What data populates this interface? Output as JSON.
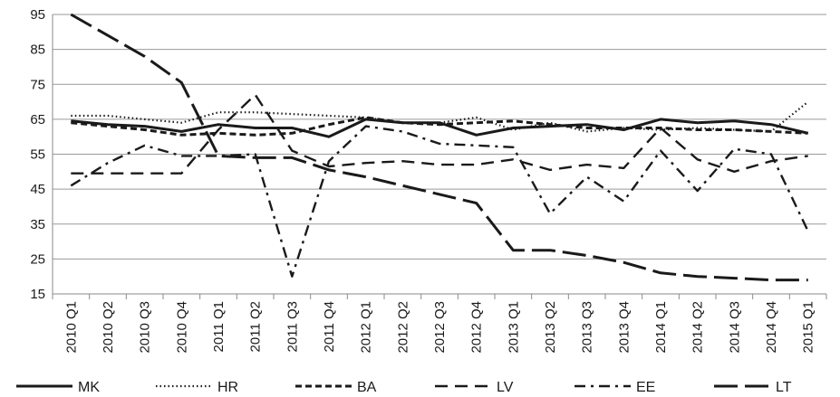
{
  "chart_data": {
    "type": "line",
    "title": "",
    "xlabel": "",
    "ylabel": "",
    "ylim": [
      15,
      95
    ],
    "yticks": [
      15,
      25,
      35,
      45,
      55,
      65,
      75,
      85,
      95
    ],
    "grid": "horizontal",
    "legend_position": "bottom",
    "categories": [
      "2010 Q1",
      "2010 Q2",
      "2010 Q3",
      "2010 Q4",
      "2011 Q1",
      "2011 Q2",
      "2011 Q3",
      "2011 Q4",
      "2012 Q1",
      "2012 Q2",
      "2012 Q3",
      "2012 Q4",
      "2013 Q1",
      "2013 Q2",
      "2013 Q3",
      "2013 Q4",
      "2014 Q1",
      "2014 Q2",
      "2014 Q3",
      "2014 Q4",
      "2015 Q1"
    ],
    "series": [
      {
        "name": "MK",
        "style": "solid",
        "values": [
          64.5,
          63.5,
          63,
          61.5,
          63.5,
          62.5,
          62.5,
          60,
          65,
          64,
          64,
          60.5,
          62.5,
          63,
          63.5,
          62,
          65,
          64,
          64.5,
          63.5,
          61
        ]
      },
      {
        "name": "HR",
        "style": "dotted",
        "values": [
          66,
          66,
          65,
          64,
          67,
          67,
          66.5,
          66,
          65.5,
          64,
          64,
          65.5,
          62,
          64,
          61.5,
          62.5,
          62,
          62.5,
          62,
          61.5,
          70
        ]
      },
      {
        "name": "BA",
        "style": "dashed",
        "values": [
          64,
          63,
          62,
          60.5,
          61,
          60.5,
          61,
          63.5,
          65.5,
          64,
          63.5,
          64,
          64.5,
          63.5,
          62.5,
          62.5,
          62.5,
          62,
          62,
          61.5,
          61
        ]
      },
      {
        "name": "LV",
        "style": "longdash",
        "values": [
          49.5,
          49.5,
          49.5,
          49.5,
          62,
          72,
          56,
          51.5,
          52.5,
          53,
          52,
          52,
          53.5,
          50.5,
          52,
          51,
          62.5,
          53.5,
          50,
          53,
          54.5
        ]
      },
      {
        "name": "EE",
        "style": "dashdot",
        "values": [
          46,
          52.5,
          57.5,
          54.5,
          54.5,
          55,
          20,
          53,
          63,
          61.5,
          58,
          57.5,
          57,
          38,
          48.5,
          41.5,
          56,
          44.5,
          56.5,
          55,
          33
        ]
      },
      {
        "name": "LT",
        "style": "dash-long",
        "values": [
          95,
          89,
          83,
          75.5,
          54.5,
          54,
          54,
          50.5,
          48.5,
          46,
          43.5,
          41,
          27.5,
          27.5,
          26,
          24,
          21,
          20,
          19.5,
          19,
          19
        ]
      }
    ]
  }
}
